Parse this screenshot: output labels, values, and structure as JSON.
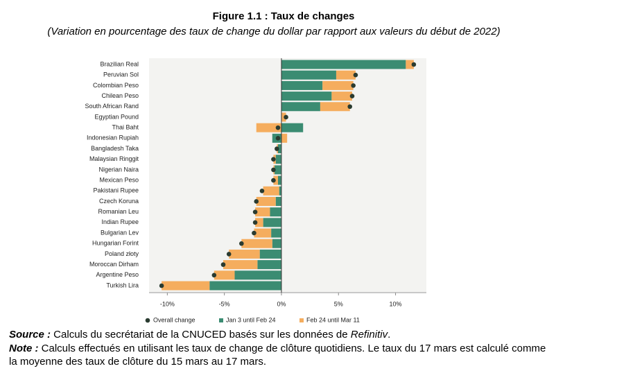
{
  "chart_data": {
    "type": "stacked_bar_horizontal",
    "title": "Figure 1.1 : Taux de changes",
    "subtitle": "(Variation en pourcentage des taux de change du dollar par rapport aux valeurs du début de 2022)",
    "categories": [
      "Brazilian Real",
      "Peruvian Sol",
      "Colombian Peso",
      "Chilean Peso",
      "South African Rand",
      "Egyptian Pound",
      "Thai Baht",
      "Indonesian Rupiah",
      "Bangladesh Taka",
      "Malaysian Ringgit",
      "Nigerian Naira",
      "Mexican Peso",
      "Pakistani Rupee",
      "Czech Koruna",
      "Romanian Leu",
      "Indian Rupee",
      "Bulgarian Lev",
      "Hungarian Forint",
      "Poland złoty",
      "Moroccan Dirham",
      "Argentine Peso",
      "Turkish Lira"
    ],
    "series": [
      {
        "name": "Jan 3 until Feb 24",
        "color": "#3b8c72",
        "values": [
          10.9,
          4.8,
          3.6,
          4.4,
          3.4,
          0,
          1.9,
          -0.8,
          -0.3,
          -0.5,
          -0.6,
          -0.3,
          -0.2,
          -0.5,
          -1.0,
          -1.6,
          -0.9,
          -0.8,
          -1.9,
          -2.1,
          -4.1,
          -6.3
        ]
      },
      {
        "name": "Feb 24 until Mar 11",
        "color": "#f5ad5e",
        "values": [
          0.7,
          1.7,
          2.7,
          1.8,
          2.6,
          0.4,
          -2.2,
          0.5,
          -0.1,
          -0.2,
          -0.1,
          -0.4,
          -1.4,
          -1.7,
          -1.3,
          -0.7,
          -1.5,
          -2.7,
          -2.7,
          -3.0,
          -1.8,
          -4.2
        ]
      }
    ],
    "overall": {
      "name": "Overall change",
      "color": "#2a3b30",
      "values": [
        11.6,
        6.5,
        6.3,
        6.2,
        6.0,
        0.4,
        -0.3,
        -0.3,
        -0.4,
        -0.7,
        -0.7,
        -0.7,
        -1.7,
        -2.2,
        -2.3,
        -2.3,
        -2.4,
        -3.5,
        -4.6,
        -5.1,
        -5.9,
        -10.5
      ]
    },
    "xlim": [
      -11.6,
      12.7
    ],
    "xticks": [
      {
        "value": -10,
        "label": "-10%"
      },
      {
        "value": -5,
        "label": "-5%"
      },
      {
        "value": 0,
        "label": "0%"
      },
      {
        "value": 5,
        "label": "5%"
      },
      {
        "value": 10,
        "label": "10%"
      }
    ]
  },
  "footer": {
    "source": {
      "label": "Source :",
      "text": " Calculs du secrétariat de la CNUCED basés sur les données de ",
      "emph": "Refinitiv",
      "end": "."
    },
    "note": {
      "label": "Note :",
      "lines": [
        " Calculs effectués en utilisant les taux de change de clôture quotidiens. Le taux du 17 mars est calculé comme",
        "la moyenne des taux de clôture du 15 mars au 17 mars."
      ]
    }
  }
}
